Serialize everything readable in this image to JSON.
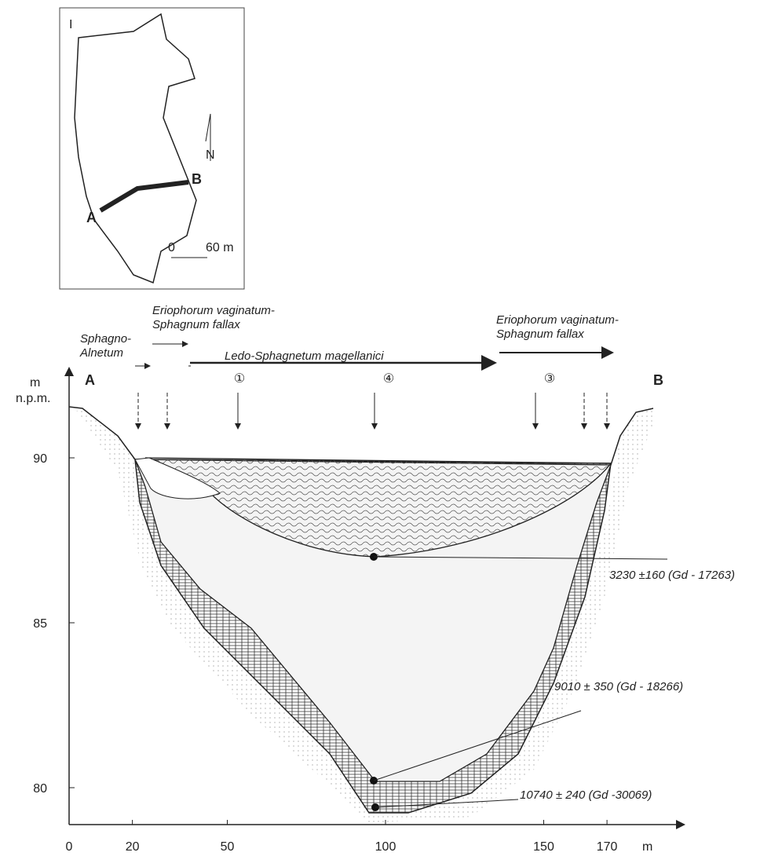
{
  "inset": {
    "label": "I",
    "a": "A",
    "b": "B",
    "north": "N",
    "scale_start": "0",
    "scale_end": "60 m"
  },
  "section": {
    "a": "A",
    "b": "B",
    "communities": [
      {
        "lines": [
          "Sphagno-",
          "Alnetum"
        ]
      },
      {
        "lines": [
          "Eriophorum vaginatum-",
          "Sphagnum fallax"
        ]
      },
      {
        "lines": [
          "Ledo-Sphagnetum magellanici"
        ]
      },
      {
        "lines": [
          "Eriophorum vaginatum-",
          "Sphagnum fallax"
        ]
      }
    ],
    "sites": [
      "①",
      "④",
      "③"
    ],
    "dates": [
      "3230 ±160 (Gd - 17263)",
      "9010 ± 350 (Gd - 18266)",
      "10740 ± 240 (Gd -30069)"
    ]
  },
  "x_axis": {
    "unit": "m",
    "ticks": [
      0,
      20,
      50,
      100,
      150,
      170
    ]
  },
  "y_axis": {
    "unit": "m",
    "unit2": "n.p.m.",
    "ticks": [
      80,
      85,
      90
    ]
  }
}
